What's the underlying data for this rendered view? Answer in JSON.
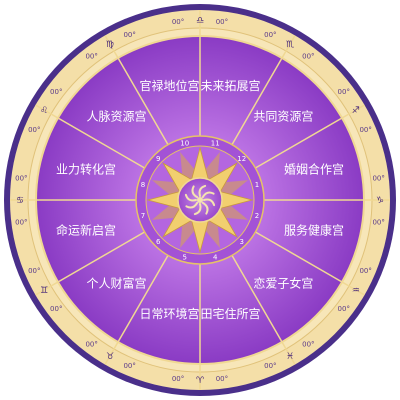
{
  "houses": [
    {
      "id": "career",
      "label": "官禄地位宫"
    },
    {
      "id": "future",
      "label": "未来拓展宫"
    },
    {
      "id": "shared",
      "label": "共同资源宫"
    },
    {
      "id": "marriage",
      "label": "婚姻合作宫"
    },
    {
      "id": "service",
      "label": "服务健康宫"
    },
    {
      "id": "romance",
      "label": "恋爱子女宫"
    },
    {
      "id": "property",
      "label": "田宅住所宫"
    },
    {
      "id": "daily",
      "label": "日常环境宫"
    },
    {
      "id": "wealth",
      "label": "个人财富宫"
    },
    {
      "id": "destiny",
      "label": "命运新启宫"
    },
    {
      "id": "karma",
      "label": "业力转化宫"
    },
    {
      "id": "network",
      "label": "人脉资源宫"
    }
  ],
  "house_numbers": [
    "10",
    "11",
    "12",
    "1",
    "2",
    "3",
    "4",
    "5",
    "6",
    "7",
    "8",
    "9"
  ],
  "degree_text": "00°",
  "zodiac": [
    {
      "name": "libra-icon",
      "glyph": "♎"
    },
    {
      "name": "scorpio-icon",
      "glyph": "♏"
    },
    {
      "name": "sagittarius-icon",
      "glyph": "♐"
    },
    {
      "name": "capricorn-icon",
      "glyph": "♑"
    },
    {
      "name": "aquarius-icon",
      "glyph": "♒"
    },
    {
      "name": "pisces-icon",
      "glyph": "♓"
    },
    {
      "name": "aries-icon",
      "glyph": "♈"
    },
    {
      "name": "taurus-icon",
      "glyph": "♉"
    },
    {
      "name": "gemini-icon",
      "glyph": "♊"
    },
    {
      "name": "cancer-icon",
      "glyph": "♋"
    },
    {
      "name": "leo-icon",
      "glyph": "♌"
    },
    {
      "name": "virgo-icon",
      "glyph": "♍"
    }
  ],
  "colors": {
    "outer_ring": "#f4dfa8",
    "frame": "#4a2f8a",
    "purple_light": "#b366e0",
    "purple_dark": "#7a2fb3",
    "gold": "#e6c268"
  }
}
